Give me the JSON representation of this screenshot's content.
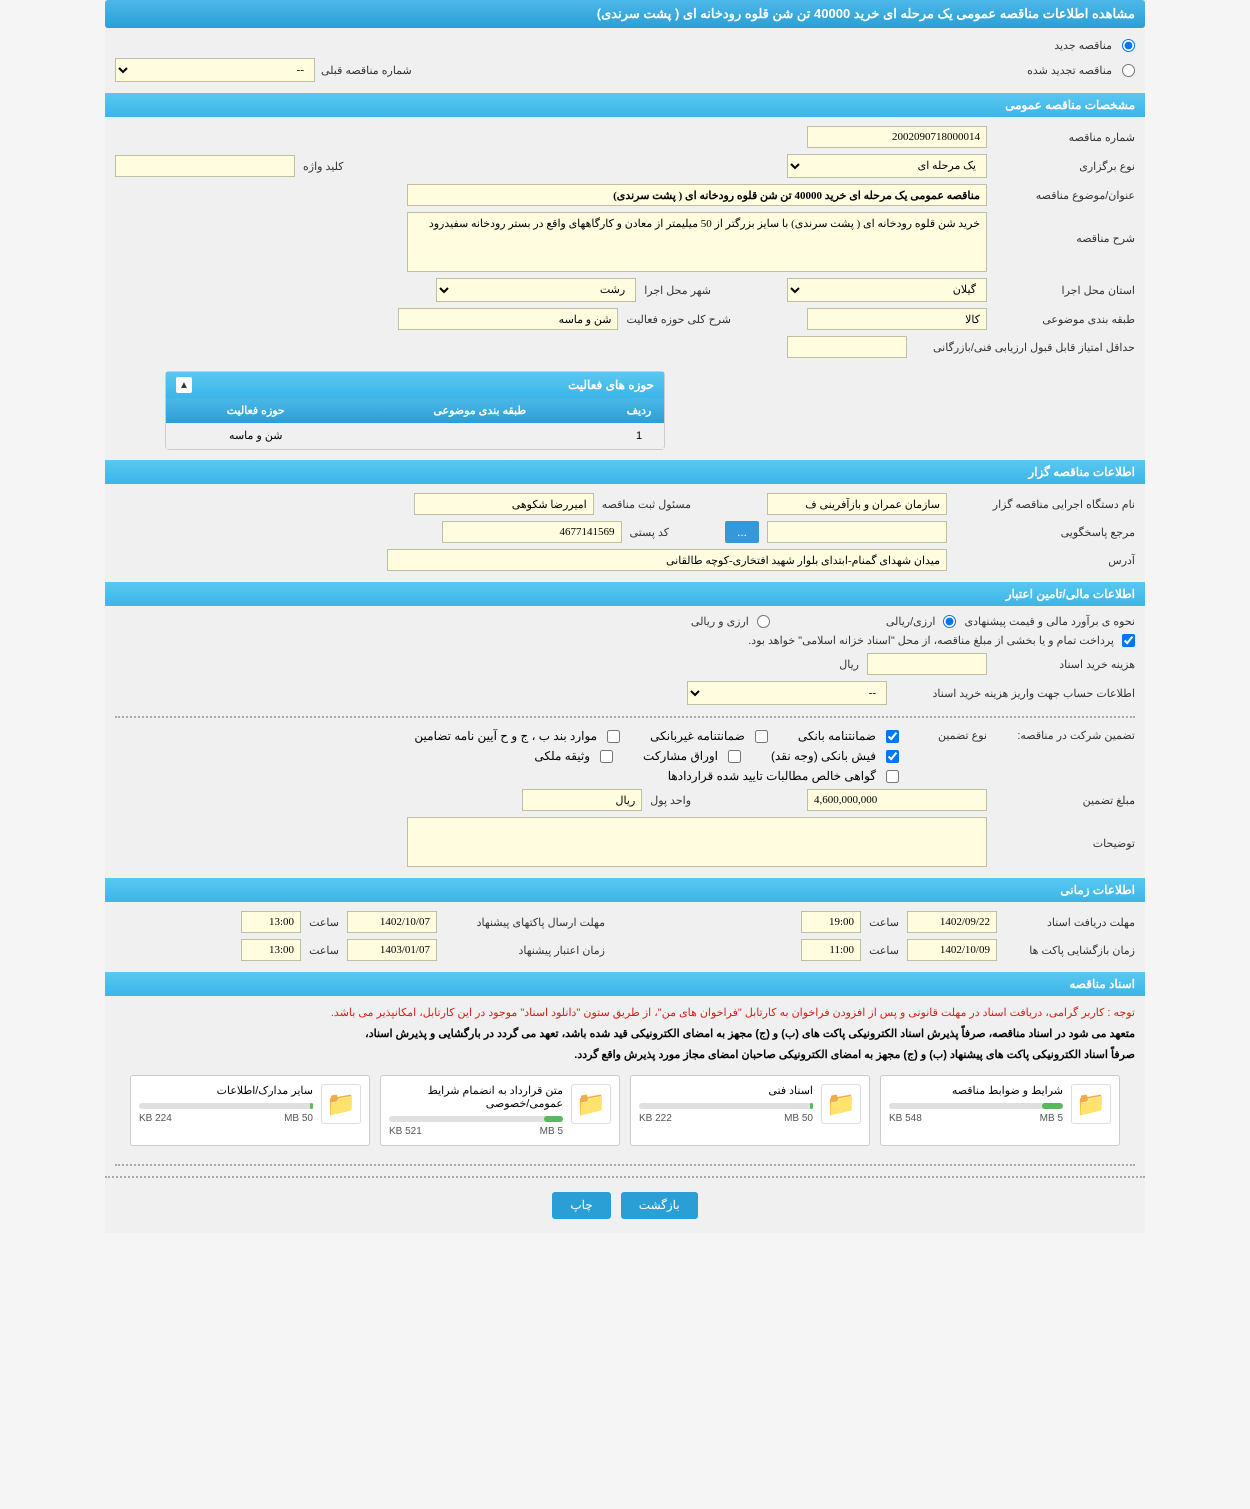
{
  "header": {
    "title": "مشاهده اطلاعات مناقصه عمومی یک مرحله ای خرید 40000 تن شن قلوه رودخانه ای ( پشت سرندی)"
  },
  "tender_type": {
    "new_label": "مناقصه جدید",
    "renewed_label": "مناقصه تجدید شده",
    "prev_number_label": "شماره مناقصه قبلی",
    "prev_number_value": "--"
  },
  "sections": {
    "general_specs": "مشخصات مناقصه عمومی",
    "organizer_info": "اطلاعات مناقصه گزار",
    "financial_info": "اطلاعات مالی/تامین اعتبار",
    "time_info": "اطلاعات زمانی",
    "docs": "اسناد مناقصه"
  },
  "general": {
    "tender_number_label": "شماره مناقصه",
    "tender_number": "2002090718000014",
    "holding_type_label": "نوع برگزاری",
    "holding_type": "یک مرحله ای",
    "keyword_label": "کلید واژه",
    "keyword": "",
    "subject_label": "عنوان/موضوع مناقصه",
    "subject": "مناقصه عمومی یک مرحله ای خرید 40000 تن شن قلوه رودخانه ای ( پشت سرندی)",
    "description_label": "شرح مناقصه",
    "description": "خرید شن قلوه رودخانه ای ( پشت سرندی) با سایز بزرگتر از 50 میلیمتر از معادن و کارگاههای واقع در بستر رودخانه سفیدرود",
    "province_label": "استان محل اجرا",
    "province": "گیلان",
    "city_label": "شهر محل اجرا",
    "city": "رشت",
    "category_label": "طبقه بندی موضوعی",
    "category": "کالا",
    "activity_desc_label": "شرح کلی حوزه فعالیت",
    "activity_desc": "شن و ماسه",
    "min_score_label": "حداقل امتیاز قابل قبول ارزیابی فنی/بازرگانی",
    "min_score": ""
  },
  "activity_panel": {
    "title": "حوزه های فعالیت",
    "columns": [
      "ردیف",
      "طبقه بندی موضوعی",
      "حوزه فعالیت"
    ],
    "rows": [
      [
        "1",
        "",
        "شن و ماسه"
      ]
    ]
  },
  "organizer": {
    "exec_name_label": "نام دستگاه اجرایی مناقصه گزار",
    "exec_name": "سازمان عمران و بازآفرینی ف",
    "registrar_label": "مسئول ثبت مناقصه",
    "registrar": "امیررضا شکوهی",
    "response_ref_label": "مرجع پاسخگویی",
    "response_ref": "",
    "postal_code_label": "کد پستی",
    "postal_code": "4677141569",
    "address_label": "آدرس",
    "address": "میدان شهدای گمنام-ابتدای بلوار شهید افتخاری-کوچه طالقانی",
    "more_btn": "..."
  },
  "financial": {
    "estimate_method_label": "نحوه ی برآورد مالی و قیمت پیشنهادی",
    "option_rial": "ارزی/ریالی",
    "option_currency": "ارزی و ریالی",
    "payment_note": "پرداخت تمام و یا بخشی از مبلغ مناقصه، از محل \"اسناد خزانه اسلامی\" خواهد بود.",
    "doc_cost_label": "هزینه خرید اسناد",
    "doc_cost": "",
    "rial_label": "ریال",
    "account_info_label": "اطلاعات حساب جهت واریز هزینه خرید اسناد",
    "account_info": "--",
    "guarantee_label": "تضمین شرکت در مناقصه:",
    "guarantee_type_label": "نوع تضمین",
    "bank_guarantee": "ضمانتنامه بانکی",
    "nonbank_guarantee": "ضمانتنامه غیربانکی",
    "regulation_items": "موارد بند ب ، ج و ح آیین نامه تضامین",
    "bank_receipt": "فیش بانکی (وجه نقد)",
    "participation_bonds": "اوراق مشارکت",
    "property_deposit": "وثیقه ملکی",
    "receivables_cert": "گواهی خالص مطالبات تایید شده قراردادها",
    "guarantee_amount_label": "مبلغ تضمین",
    "guarantee_amount": "4,600,000,000",
    "currency_unit_label": "واحد پول",
    "currency_unit": "ریال",
    "notes_label": "توضیحات",
    "notes": ""
  },
  "timing": {
    "receive_deadline_label": "مهلت دریافت اسناد",
    "receive_deadline_date": "1402/09/22",
    "receive_deadline_time": "19:00",
    "submit_deadline_label": "مهلت ارسال پاکتهای پیشنهاد",
    "submit_deadline_date": "1402/10/07",
    "submit_deadline_time": "13:00",
    "opening_time_label": "زمان بازگشایی پاکت ها",
    "opening_date": "1402/10/09",
    "opening_time": "11:00",
    "validity_label": "زمان اعتبار پیشنهاد",
    "validity_date": "1403/01/07",
    "validity_time": "13:00",
    "time_label": "ساعت"
  },
  "docs": {
    "notice_red": "توجه : کاربر گرامی، دریافت اسناد در مهلت قانونی و پس از افزودن فراخوان به کارتابل \"فراخوان های من\"، از طریق ستون \"دانلود اسناد\" موجود در این کارتابل، امکانپذیر می باشد.",
    "notice_bold1": "متعهد می شود در اسناد مناقصه، صرفاً پذیرش اسناد الکترونیکی پاکت های (ب) و (ج) مجهز به امضای الکترونیکی قید شده باشد، تعهد می گردد در بارگشایی و پذیرش اسناد،",
    "notice_bold2": "صرفاً اسناد الکترونیکی پاکت های پیشنهاد (ب) و (ج) مجهز به امضای الکترونیکی صاحبان امضای مجاز مورد پذیرش واقع گردد.",
    "files": [
      {
        "title": "شرایط و ضوابط مناقصه",
        "size": "548 KB",
        "max": "5 MB",
        "fill": 12
      },
      {
        "title": "اسناد فنی",
        "size": "222 KB",
        "max": "50 MB",
        "fill": 2
      },
      {
        "title": "متن قرارداد به انضمام شرایط عمومی/خصوصی",
        "size": "521 KB",
        "max": "5 MB",
        "fill": 11
      },
      {
        "title": "سایر مدارک/اطلاعات",
        "size": "224 KB",
        "max": "50 MB",
        "fill": 2
      }
    ]
  },
  "footer": {
    "back": "بازگشت",
    "print": "چاپ"
  },
  "colors": {
    "header_bg": "#3bb5e8",
    "input_bg": "#fffce0",
    "btn": "#2a9fd6"
  }
}
